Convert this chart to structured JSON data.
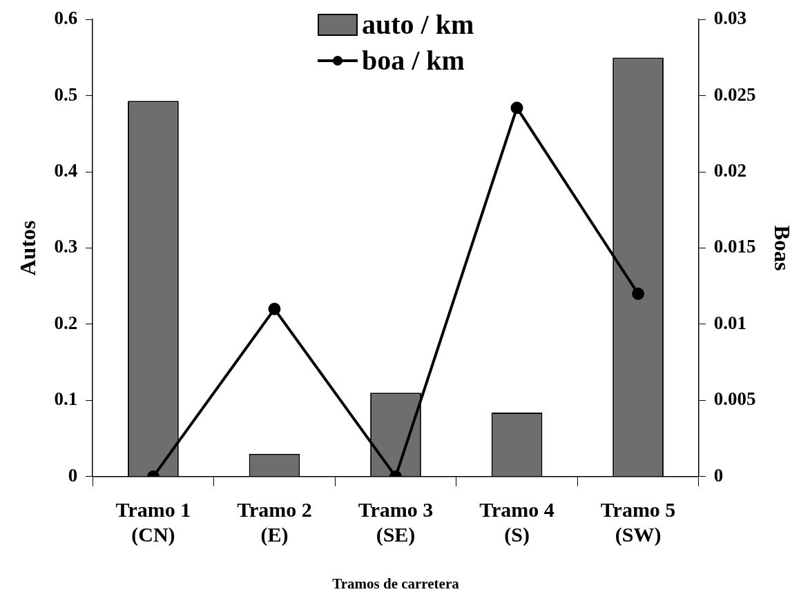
{
  "chart_data": {
    "type": "bar",
    "xlabel": "Tramos de carretera",
    "ylabel": "Autos",
    "y2label": "Boas",
    "categories": [
      "Tramo 1 (CN)",
      "Tramo 2 (E)",
      "Tramo 3 (SE)",
      "Tramo 4 (S)",
      "Tramo 5 (SW)"
    ],
    "series": [
      {
        "name": "auto / km",
        "color": "#6e6e6e",
        "values": [
          0.493,
          0.03,
          0.11,
          0.084,
          0.55
        ]
      },
      {
        "name": "boa / km",
        "type": "line",
        "axis": "y2",
        "color": "#000000",
        "marker": "circle",
        "values": [
          0,
          0.011,
          0,
          0.0242,
          0.012
        ]
      }
    ],
    "ylim": [
      0,
      0.6
    ],
    "yticks": [
      0,
      0.1,
      0.2,
      0.3,
      0.4,
      0.5,
      0.6
    ],
    "y2lim": [
      0,
      0.03
    ],
    "y2ticks": [
      0,
      0.005,
      0.01,
      0.015,
      0.02,
      0.025,
      0.03
    ],
    "legend": "top"
  }
}
